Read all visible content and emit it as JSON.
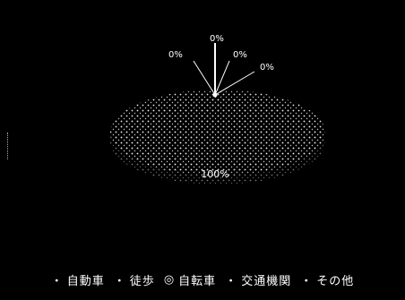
{
  "chart_data": {
    "type": "pie",
    "title": "",
    "slices": [
      {
        "label": "自動車",
        "value": 100,
        "display": "100%"
      },
      {
        "label": "徒歩",
        "value": 0,
        "display": "0%"
      },
      {
        "label": "自転車",
        "value": 0,
        "display": "0%"
      },
      {
        "label": "交通機関",
        "value": 0,
        "display": "0%"
      },
      {
        "label": "その他",
        "value": 0,
        "display": "0%"
      }
    ],
    "legend_position": "bottom",
    "style": "3d"
  },
  "legend": {
    "items": [
      {
        "label": "自動車",
        "marker": "・"
      },
      {
        "label": "徒歩",
        "marker": "・"
      },
      {
        "label": "自転車",
        "marker": "◎"
      },
      {
        "label": "交通機関",
        "marker": "・"
      },
      {
        "label": "その他",
        "marker": "・"
      }
    ]
  },
  "colors": {
    "background": "#000000",
    "dots": "#ffffff"
  }
}
